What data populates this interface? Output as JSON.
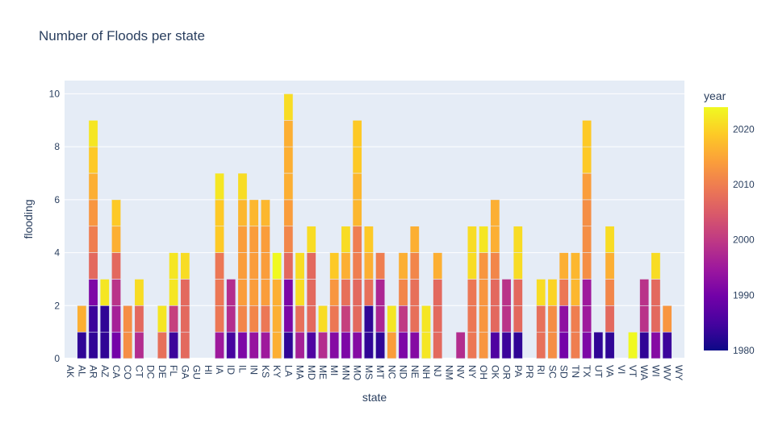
{
  "chart_data": {
    "type": "bar",
    "title": "Number of Floods per state",
    "xlabel": "state",
    "ylabel": "flooding",
    "ylim": [
      0,
      10.5
    ],
    "y_ticks": [
      0,
      2,
      4,
      6,
      8,
      10
    ],
    "barmode": "stack",
    "colorbar": {
      "title": "year",
      "range": [
        1980,
        2024
      ],
      "ticks": [
        1980,
        1990,
        2000,
        2010,
        2020
      ],
      "colorscale": [
        "#0d0887",
        "#46039f",
        "#7201a8",
        "#9c179e",
        "#bd3786",
        "#d8576b",
        "#ed7953",
        "#fb9f3a",
        "#fdca26",
        "#f0f921"
      ]
    },
    "categories": [
      "AK",
      "AL",
      "AR",
      "AZ",
      "CA",
      "CO",
      "CT",
      "DC",
      "DE",
      "FL",
      "GA",
      "GU",
      "HI",
      "IA",
      "ID",
      "IL",
      "IN",
      "KS",
      "KY",
      "LA",
      "MA",
      "MD",
      "ME",
      "MI",
      "MN",
      "MO",
      "MS",
      "MT",
      "NC",
      "ND",
      "NE",
      "NH",
      "NJ",
      "NM",
      "NV",
      "NY",
      "OH",
      "OK",
      "OR",
      "PA",
      "PR",
      "RI",
      "SC",
      "SD",
      "TN",
      "TX",
      "UT",
      "VA",
      "VI",
      "VT",
      "WA",
      "WI",
      "WV",
      "WY"
    ],
    "segments_year": [
      [],
      [
        1983,
        2016
      ],
      [
        1983,
        1984,
        1991,
        2007,
        2010,
        2013,
        2016,
        2019,
        2022
      ],
      [
        1983,
        1983,
        2022
      ],
      [
        1990,
        1996,
        1999,
        2007,
        2016,
        2019
      ],
      [
        2012,
        2012
      ],
      [
        1998,
        2007,
        2021
      ],
      [],
      [
        2008,
        2022
      ],
      [
        1984,
        2001,
        2022,
        2022
      ],
      [
        2007,
        2007,
        2007,
        2021
      ],
      [],
      [],
      [
        1995,
        2009,
        2009,
        2009,
        2019,
        2019,
        2022
      ],
      [
        1985,
        1998,
        1998
      ],
      [
        1991,
        2011,
        2014,
        2014,
        2014,
        2017,
        2021
      ],
      [
        1994,
        2011,
        2014,
        2014,
        2014,
        2017
      ],
      [
        1995,
        2009,
        2014,
        2014,
        2014,
        2017
      ],
      [
        2016,
        2016,
        2016,
        2024
      ],
      [
        1983,
        1991,
        1991,
        2007,
        2011,
        2014,
        2016,
        2016,
        2016,
        2021
      ],
      [
        1996,
        2008,
        2021,
        2021
      ],
      [
        1986,
        2007,
        2007,
        2007,
        2021
      ],
      [
        1998,
        2021
      ],
      [
        1992,
        2009,
        2013,
        2019
      ],
      [
        1991,
        2001,
        2008,
        2016,
        2021
      ],
      [
        1992,
        2007,
        2007,
        2010,
        2010,
        2017,
        2017,
        2019,
        2019
      ],
      [
        1983,
        1983,
        2008,
        2016,
        2019
      ],
      [
        1983,
        1997,
        1997,
        2010
      ],
      [
        2014,
        2022
      ],
      [
        1991,
        2000,
        2011,
        2016
      ],
      [
        1992,
        2008,
        2008,
        2011,
        2016
      ],
      [
        2022,
        2022
      ],
      [
        2007,
        2007,
        2007,
        2016
      ],
      [],
      [
        1998
      ],
      [
        2009,
        2009,
        2009,
        2021,
        2021
      ],
      [
        2013,
        2013,
        2013,
        2013,
        2022
      ],
      [
        1986,
        2007,
        2007,
        2011,
        2016,
        2016
      ],
      [
        1984,
        1999,
        1999
      ],
      [
        1983,
        2007,
        2007,
        2021,
        2021
      ],
      [],
      [
        2008,
        2008,
        2021
      ],
      [
        2012,
        2012,
        2020
      ],
      [
        1990,
        1993,
        2009,
        2016
      ],
      [
        2010,
        2010,
        2017,
        2017
      ],
      [
        1991,
        1995,
        1995,
        2012,
        2012,
        2012,
        2014,
        2019,
        2019
      ],
      [
        1983
      ],
      [
        1983,
        2007,
        2011,
        2016,
        2021
      ],
      [],
      [
        2024
      ],
      [
        1983,
        1999,
        1999
      ],
      [
        1992,
        2007,
        2007,
        2021
      ],
      [
        1984,
        2013
      ],
      []
    ]
  }
}
